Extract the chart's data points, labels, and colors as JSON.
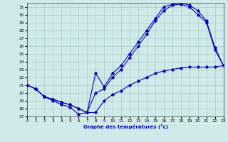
{
  "xlabel": "Graphe des températures (°c)",
  "xlim": [
    0,
    23
  ],
  "ylim": [
    17,
    31.5
  ],
  "xticks": [
    0,
    1,
    2,
    3,
    4,
    5,
    6,
    7,
    8,
    9,
    10,
    11,
    12,
    13,
    14,
    15,
    16,
    17,
    18,
    19,
    20,
    21,
    22,
    23
  ],
  "yticks": [
    17,
    18,
    19,
    20,
    21,
    22,
    23,
    24,
    25,
    26,
    27,
    28,
    29,
    30,
    31
  ],
  "background_color": "#d0eaea",
  "grid_color": "#a8cccc",
  "line_color": "#0000bb",
  "line1_x": [
    0,
    1,
    2,
    3,
    4,
    5,
    6,
    7,
    8,
    9,
    10,
    11,
    12,
    13,
    14,
    15,
    16,
    17,
    18,
    19,
    20,
    21,
    22,
    23
  ],
  "line1_y": [
    21.0,
    20.5,
    19.5,
    19.0,
    18.5,
    18.2,
    17.3,
    17.5,
    20.0,
    20.5,
    22.0,
    23.0,
    24.5,
    26.0,
    27.5,
    29.2,
    30.5,
    31.2,
    31.3,
    31.0,
    30.0,
    29.0,
    25.5,
    23.5
  ],
  "line2_x": [
    0,
    1,
    2,
    3,
    4,
    5,
    6,
    7,
    8,
    9,
    10,
    11,
    12,
    13,
    14,
    15,
    16,
    17,
    18,
    19,
    20,
    21,
    22,
    23
  ],
  "line2_y": [
    21.0,
    20.5,
    19.5,
    19.2,
    18.8,
    18.5,
    18.0,
    17.5,
    22.5,
    20.8,
    22.5,
    23.5,
    25.0,
    26.5,
    28.0,
    29.5,
    31.0,
    31.3,
    31.5,
    31.2,
    30.5,
    29.2,
    25.8,
    23.5
  ],
  "line3_x": [
    0,
    1,
    2,
    3,
    4,
    5,
    6,
    7,
    8,
    9,
    10,
    11,
    12,
    13,
    14,
    15,
    16,
    17,
    18,
    19,
    20,
    21,
    22,
    23
  ],
  "line3_y": [
    21.0,
    20.5,
    19.5,
    19.2,
    18.8,
    18.5,
    18.0,
    17.5,
    17.5,
    19.0,
    19.8,
    20.3,
    21.0,
    21.5,
    22.0,
    22.5,
    22.8,
    23.0,
    23.2,
    23.3,
    23.3,
    23.3,
    23.3,
    23.5
  ]
}
